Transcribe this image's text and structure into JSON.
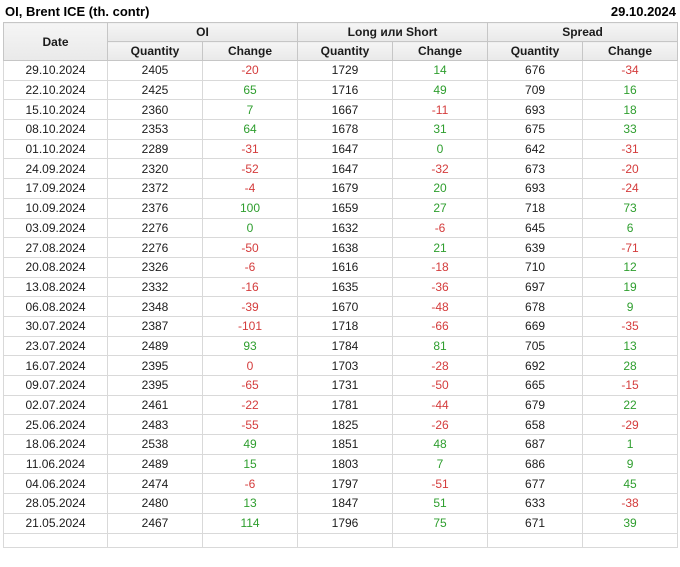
{
  "chart_data": {
    "type": "table",
    "title": "OI, Brent ICE (th. contr)",
    "as_of_date": "29.10.2024",
    "header": {
      "date_label": "Date",
      "groups": [
        {
          "label": "OI"
        },
        {
          "label": "Long или Short"
        },
        {
          "label": "Spread"
        }
      ],
      "quantity_label": "Quantity",
      "change_label": "Change"
    },
    "colors": {
      "positive_change": "#2e9e2e",
      "negative_change": "#d43c3c"
    },
    "rows": [
      {
        "date": "29.10.2024",
        "oi": {
          "quantity": 2405,
          "change": -20,
          "change_dir": "down"
        },
        "long_or_short": {
          "quantity": 1729,
          "change": 14,
          "change_dir": "up"
        },
        "spread": {
          "quantity": 676,
          "change": -34,
          "change_dir": "down"
        }
      },
      {
        "date": "22.10.2024",
        "oi": {
          "quantity": 2425,
          "change": 65,
          "change_dir": "up"
        },
        "long_or_short": {
          "quantity": 1716,
          "change": 49,
          "change_dir": "up"
        },
        "spread": {
          "quantity": 709,
          "change": 16,
          "change_dir": "up"
        }
      },
      {
        "date": "15.10.2024",
        "oi": {
          "quantity": 2360,
          "change": 7,
          "change_dir": "up"
        },
        "long_or_short": {
          "quantity": 1667,
          "change": -11,
          "change_dir": "down"
        },
        "spread": {
          "quantity": 693,
          "change": 18,
          "change_dir": "up"
        }
      },
      {
        "date": "08.10.2024",
        "oi": {
          "quantity": 2353,
          "change": 64,
          "change_dir": "up"
        },
        "long_or_short": {
          "quantity": 1678,
          "change": 31,
          "change_dir": "up"
        },
        "spread": {
          "quantity": 675,
          "change": 33,
          "change_dir": "up"
        }
      },
      {
        "date": "01.10.2024",
        "oi": {
          "quantity": 2289,
          "change": -31,
          "change_dir": "down"
        },
        "long_or_short": {
          "quantity": 1647,
          "change": 0,
          "change_dir": "up"
        },
        "spread": {
          "quantity": 642,
          "change": -31,
          "change_dir": "down"
        }
      },
      {
        "date": "24.09.2024",
        "oi": {
          "quantity": 2320,
          "change": -52,
          "change_dir": "down"
        },
        "long_or_short": {
          "quantity": 1647,
          "change": -32,
          "change_dir": "down"
        },
        "spread": {
          "quantity": 673,
          "change": -20,
          "change_dir": "down"
        }
      },
      {
        "date": "17.09.2024",
        "oi": {
          "quantity": 2372,
          "change": -4,
          "change_dir": "down"
        },
        "long_or_short": {
          "quantity": 1679,
          "change": 20,
          "change_dir": "up"
        },
        "spread": {
          "quantity": 693,
          "change": -24,
          "change_dir": "down"
        }
      },
      {
        "date": "10.09.2024",
        "oi": {
          "quantity": 2376,
          "change": 100,
          "change_dir": "up"
        },
        "long_or_short": {
          "quantity": 1659,
          "change": 27,
          "change_dir": "up"
        },
        "spread": {
          "quantity": 718,
          "change": 73,
          "change_dir": "up"
        }
      },
      {
        "date": "03.09.2024",
        "oi": {
          "quantity": 2276,
          "change": 0,
          "change_dir": "up"
        },
        "long_or_short": {
          "quantity": 1632,
          "change": -6,
          "change_dir": "down"
        },
        "spread": {
          "quantity": 645,
          "change": 6,
          "change_dir": "up"
        }
      },
      {
        "date": "27.08.2024",
        "oi": {
          "quantity": 2276,
          "change": -50,
          "change_dir": "down"
        },
        "long_or_short": {
          "quantity": 1638,
          "change": 21,
          "change_dir": "up"
        },
        "spread": {
          "quantity": 639,
          "change": -71,
          "change_dir": "down"
        }
      },
      {
        "date": "20.08.2024",
        "oi": {
          "quantity": 2326,
          "change": -6,
          "change_dir": "down"
        },
        "long_or_short": {
          "quantity": 1616,
          "change": -18,
          "change_dir": "down"
        },
        "spread": {
          "quantity": 710,
          "change": 12,
          "change_dir": "up"
        }
      },
      {
        "date": "13.08.2024",
        "oi": {
          "quantity": 2332,
          "change": -16,
          "change_dir": "down"
        },
        "long_or_short": {
          "quantity": 1635,
          "change": -36,
          "change_dir": "down"
        },
        "spread": {
          "quantity": 697,
          "change": 19,
          "change_dir": "up"
        }
      },
      {
        "date": "06.08.2024",
        "oi": {
          "quantity": 2348,
          "change": -39,
          "change_dir": "down"
        },
        "long_or_short": {
          "quantity": 1670,
          "change": -48,
          "change_dir": "down"
        },
        "spread": {
          "quantity": 678,
          "change": 9,
          "change_dir": "up"
        }
      },
      {
        "date": "30.07.2024",
        "oi": {
          "quantity": 2387,
          "change": -101,
          "change_dir": "down"
        },
        "long_or_short": {
          "quantity": 1718,
          "change": -66,
          "change_dir": "down"
        },
        "spread": {
          "quantity": 669,
          "change": -35,
          "change_dir": "down"
        }
      },
      {
        "date": "23.07.2024",
        "oi": {
          "quantity": 2489,
          "change": 93,
          "change_dir": "up"
        },
        "long_or_short": {
          "quantity": 1784,
          "change": 81,
          "change_dir": "up"
        },
        "spread": {
          "quantity": 705,
          "change": 13,
          "change_dir": "up"
        }
      },
      {
        "date": "16.07.2024",
        "oi": {
          "quantity": 2395,
          "change": 0,
          "change_dir": "down"
        },
        "long_or_short": {
          "quantity": 1703,
          "change": -28,
          "change_dir": "down"
        },
        "spread": {
          "quantity": 692,
          "change": 28,
          "change_dir": "up"
        }
      },
      {
        "date": "09.07.2024",
        "oi": {
          "quantity": 2395,
          "change": -65,
          "change_dir": "down"
        },
        "long_or_short": {
          "quantity": 1731,
          "change": -50,
          "change_dir": "down"
        },
        "spread": {
          "quantity": 665,
          "change": -15,
          "change_dir": "down"
        }
      },
      {
        "date": "02.07.2024",
        "oi": {
          "quantity": 2461,
          "change": -22,
          "change_dir": "down"
        },
        "long_or_short": {
          "quantity": 1781,
          "change": -44,
          "change_dir": "down"
        },
        "spread": {
          "quantity": 679,
          "change": 22,
          "change_dir": "up"
        }
      },
      {
        "date": "25.06.2024",
        "oi": {
          "quantity": 2483,
          "change": -55,
          "change_dir": "down"
        },
        "long_or_short": {
          "quantity": 1825,
          "change": -26,
          "change_dir": "down"
        },
        "spread": {
          "quantity": 658,
          "change": -29,
          "change_dir": "down"
        }
      },
      {
        "date": "18.06.2024",
        "oi": {
          "quantity": 2538,
          "change": 49,
          "change_dir": "up"
        },
        "long_or_short": {
          "quantity": 1851,
          "change": 48,
          "change_dir": "up"
        },
        "spread": {
          "quantity": 687,
          "change": 1,
          "change_dir": "up"
        }
      },
      {
        "date": "11.06.2024",
        "oi": {
          "quantity": 2489,
          "change": 15,
          "change_dir": "up"
        },
        "long_or_short": {
          "quantity": 1803,
          "change": 7,
          "change_dir": "up"
        },
        "spread": {
          "quantity": 686,
          "change": 9,
          "change_dir": "up"
        }
      },
      {
        "date": "04.06.2024",
        "oi": {
          "quantity": 2474,
          "change": -6,
          "change_dir": "down"
        },
        "long_or_short": {
          "quantity": 1797,
          "change": -51,
          "change_dir": "down"
        },
        "spread": {
          "quantity": 677,
          "change": 45,
          "change_dir": "up"
        }
      },
      {
        "date": "28.05.2024",
        "oi": {
          "quantity": 2480,
          "change": 13,
          "change_dir": "up"
        },
        "long_or_short": {
          "quantity": 1847,
          "change": 51,
          "change_dir": "up"
        },
        "spread": {
          "quantity": 633,
          "change": -38,
          "change_dir": "down"
        }
      },
      {
        "date": "21.05.2024",
        "oi": {
          "quantity": 2467,
          "change": 114,
          "change_dir": "up"
        },
        "long_or_short": {
          "quantity": 1796,
          "change": 75,
          "change_dir": "up"
        },
        "spread": {
          "quantity": 671,
          "change": 39,
          "change_dir": "up"
        }
      }
    ]
  }
}
